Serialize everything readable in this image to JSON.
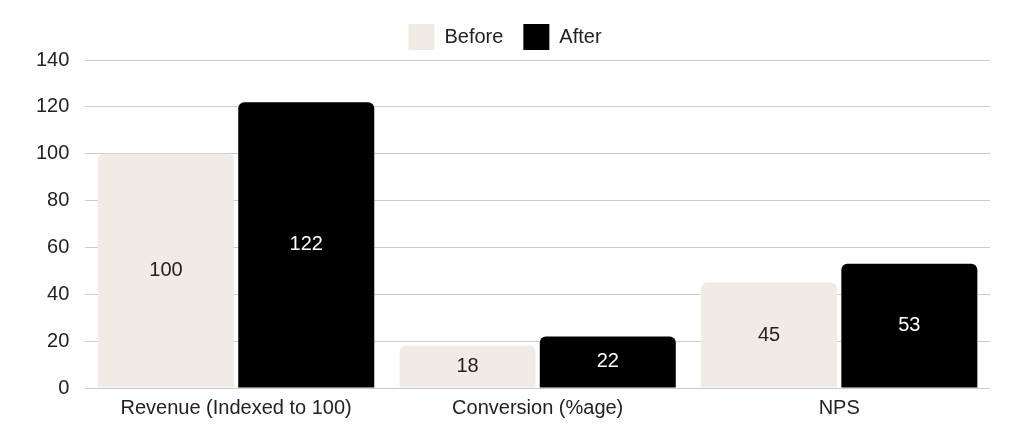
{
  "chart_data": {
    "type": "bar",
    "categories": [
      "Revenue (Indexed to 100)",
      "Conversion (%age)",
      "NPS"
    ],
    "series": [
      {
        "name": "Before",
        "color": "#f0ebe5",
        "values": [
          100,
          18,
          45
        ]
      },
      {
        "name": "After",
        "color": "#000000",
        "values": [
          122,
          22,
          53
        ]
      }
    ],
    "ylim": [
      0,
      140
    ],
    "yticks": [
      0,
      20,
      40,
      60,
      80,
      100,
      120,
      140
    ],
    "grid": "y",
    "legend": "top",
    "data_labels": true
  }
}
